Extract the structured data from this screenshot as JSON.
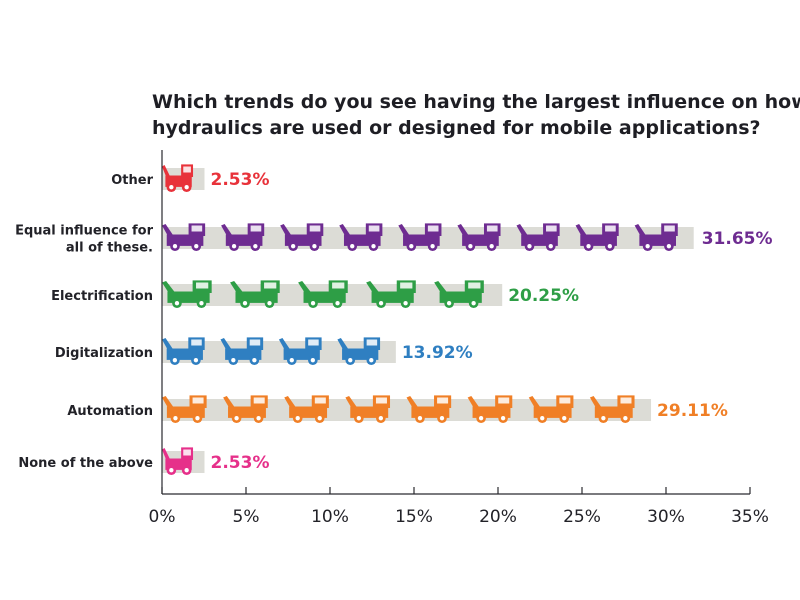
{
  "chart_data": {
    "type": "bar",
    "orientation": "horizontal",
    "title": "Which trends do you see having the largest influence on how hydraulics are used or designed for mobile applications?",
    "title_lines": [
      "Which trends do you see having the largest influence on how",
      "hydraulics are used or designed for mobile applications?"
    ],
    "xlabel": "",
    "ylabel": "",
    "xlim": [
      0,
      35
    ],
    "grid": false,
    "legend": "none",
    "x_ticks": [
      "0%",
      "5%",
      "10%",
      "15%",
      "20%",
      "25%",
      "30%",
      "35%"
    ],
    "categories": [
      "Other",
      "Equal influence for all of these.",
      "Electrification",
      "Digitalization",
      "Automation",
      "None of the above"
    ],
    "category_label_lines": [
      [
        "Other"
      ],
      [
        "Equal influence for",
        "all of these."
      ],
      [
        "Electrification"
      ],
      [
        "Digitalization"
      ],
      [
        "Automation"
      ],
      [
        "None of the above"
      ]
    ],
    "values": [
      2.53,
      31.65,
      20.25,
      13.92,
      29.11,
      2.53
    ],
    "value_labels": [
      "2.53%",
      "31.65%",
      "20.25%",
      "13.92%",
      "29.11%",
      "2.53%"
    ],
    "colors": [
      "#e8323a",
      "#6e2c91",
      "#2e9e46",
      "#2f7fc1",
      "#f07f26",
      "#e6308a"
    ],
    "bar_background_color": "#dcdcd6",
    "bar_icon": "construction-vehicle-silhouettes"
  }
}
